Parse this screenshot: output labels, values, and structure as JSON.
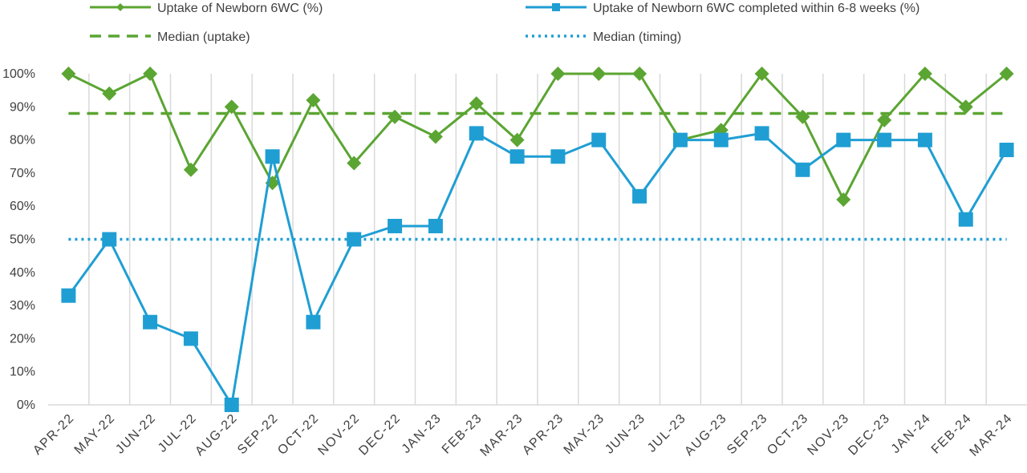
{
  "chart_data": {
    "type": "line",
    "categories": [
      "APR-22",
      "MAY-22",
      "JUN-22",
      "JUL-22",
      "AUG-22",
      "SEP-22",
      "OCT-22",
      "NOV-22",
      "DEC-22",
      "JAN-23",
      "FEB-23",
      "MAR-23",
      "APR-23",
      "MAY-23",
      "JUN-23",
      "JUL-23",
      "AUG-23",
      "SEP-23",
      "OCT-23",
      "NOV-23",
      "DEC-23",
      "JAN-24",
      "FEB-24",
      "MAR-24"
    ],
    "ylim": [
      0,
      100
    ],
    "yticks": [
      "0%",
      "10%",
      "20%",
      "30%",
      "40%",
      "50%",
      "60%",
      "70%",
      "80%",
      "90%",
      "100%"
    ],
    "grid": "vertical",
    "legend_position": "top",
    "series": [
      {
        "name": "Uptake of Newborn 6WC (%)",
        "color": "#5BA532",
        "marker": "diamond",
        "values": [
          100,
          94,
          100,
          71,
          90,
          67,
          92,
          73,
          87,
          81,
          91,
          80,
          100,
          100,
          100,
          80,
          83,
          100,
          87,
          62,
          86,
          100,
          90,
          100
        ]
      },
      {
        "name": "Uptake of Newborn 6WC completed within 6-8 weeks (%)",
        "color": "#1F9ED3",
        "marker": "square",
        "values": [
          33,
          50,
          25,
          20,
          0,
          75,
          25,
          50,
          54,
          54,
          82,
          75,
          75,
          80,
          63,
          80,
          80,
          82,
          71,
          80,
          80,
          80,
          56,
          77
        ]
      }
    ],
    "reference_lines": [
      {
        "name": "Median (uptake)",
        "value": 88,
        "color": "#5BA532",
        "style": "dashed"
      },
      {
        "name": "Median (timing)",
        "value": 50,
        "color": "#1F9ED3",
        "style": "dotted"
      }
    ]
  }
}
